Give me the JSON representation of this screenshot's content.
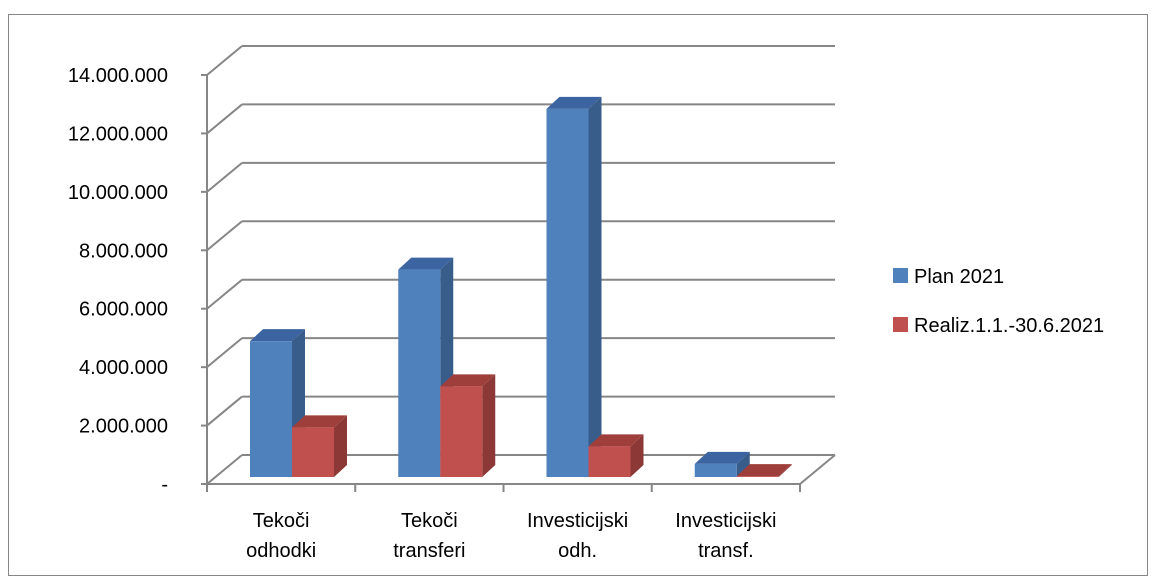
{
  "chart_data": {
    "type": "bar",
    "style": "3d-clustered-column",
    "categories": [
      [
        "Tekoči",
        "odhodki"
      ],
      [
        "Tekoči",
        "transferi"
      ],
      [
        "Investicijski",
        "odh."
      ],
      [
        "Investicijski",
        "transf."
      ]
    ],
    "series": [
      {
        "name": "Plan 2021",
        "values": [
          4650000,
          7100000,
          12600000,
          450000
        ],
        "color": "#4F81BD",
        "side_color": "#385D8A",
        "top_color": "#3C64A0"
      },
      {
        "name": "Realiz.1.1.-30.6.2021",
        "values": [
          1700000,
          3100000,
          1050000,
          30000
        ],
        "color": "#C0504D",
        "side_color": "#8C3836",
        "top_color": "#9E3F3C"
      }
    ],
    "y_ticks": [
      "-",
      "2.000.000",
      "4.000.000",
      "6.000.000",
      "8.000.000",
      "10.000.000",
      "12.000.000",
      "14.000.000"
    ],
    "ylim": [
      0,
      14000000
    ],
    "grid": true,
    "legend_position": "right",
    "grid_color": "#868686"
  }
}
